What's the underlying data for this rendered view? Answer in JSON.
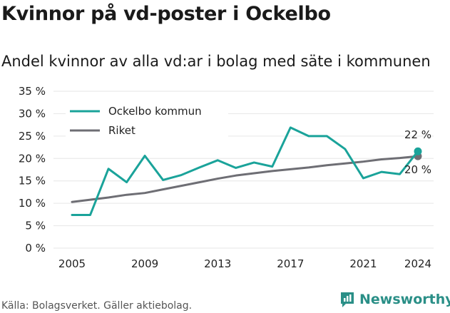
{
  "header": {
    "title": "Kvinnor på vd-poster i Ockelbo",
    "subtitle": "Andel kvinnor av alla vd:ar i bolag med säte i kommunen"
  },
  "footer": {
    "source": "Källa: Bolagsverket. Gäller aktiebolag.",
    "brand": "Newsworthy"
  },
  "colors": {
    "ockelbo": "#1aa39a",
    "riket": "#6e6e74",
    "grid": "#e6e6e6",
    "brand": "#2a8f87"
  },
  "chart_data": {
    "type": "line",
    "title": "Kvinnor på vd-poster i Ockelbo",
    "subtitle": "Andel kvinnor av alla vd:ar i bolag med säte i kommunen",
    "xlabel": "",
    "ylabel": "",
    "x": [
      2005,
      2006,
      2007,
      2008,
      2009,
      2010,
      2011,
      2012,
      2013,
      2014,
      2015,
      2016,
      2017,
      2018,
      2019,
      2020,
      2021,
      2022,
      2023,
      2024
    ],
    "xticks": [
      "2005",
      "2009",
      "2013",
      "2017",
      "2021",
      "2024"
    ],
    "xlim": [
      2005,
      2024
    ],
    "ylim": [
      0,
      35
    ],
    "yticks": [
      0,
      5,
      10,
      15,
      20,
      25,
      30,
      35
    ],
    "ytick_labels": [
      "0 %",
      "5 %",
      "10 %",
      "15 %",
      "20 %",
      "25 %",
      "30 %",
      "35 %"
    ],
    "grid": true,
    "legend": "top-left",
    "series": [
      {
        "name": "Ockelbo kommun",
        "color": "#1aa39a",
        "values": [
          7.4,
          7.4,
          17.7,
          14.7,
          20.6,
          15.2,
          16.3,
          18.0,
          19.6,
          17.9,
          19.1,
          18.2,
          26.9,
          25.0,
          25.0,
          22.1,
          15.6,
          17.0,
          16.5,
          21.6
        ],
        "end_label": "22 %"
      },
      {
        "name": "Riket",
        "color": "#6e6e74",
        "values": [
          10.3,
          10.8,
          11.3,
          11.9,
          12.3,
          13.1,
          13.9,
          14.7,
          15.5,
          16.2,
          16.7,
          17.2,
          17.6,
          18.0,
          18.5,
          18.9,
          19.3,
          19.8,
          20.1,
          20.5
        ],
        "end_label": "20 %"
      }
    ]
  }
}
